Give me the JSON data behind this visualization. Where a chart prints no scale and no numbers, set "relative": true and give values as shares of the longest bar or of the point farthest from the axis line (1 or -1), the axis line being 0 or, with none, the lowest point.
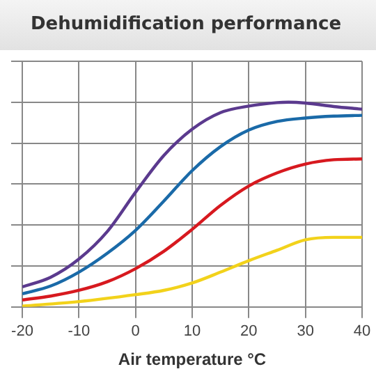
{
  "chart_data": {
    "type": "line",
    "title": "Dehumidification performance",
    "xlabel": "Air temperature °C",
    "relative": true,
    "xlim": [
      -20,
      40
    ],
    "xticks": [
      -20,
      -10,
      0,
      10,
      20,
      30,
      40
    ],
    "tick_labels": "x",
    "grid": true,
    "marker": "none",
    "line_style": "solid",
    "series": [
      {
        "color": "#5b3a8e",
        "x": [
          -20,
          -15,
          -10,
          -5,
          0,
          5,
          10,
          15,
          20,
          25,
          27,
          30,
          35,
          40
        ],
        "values": [
          0.098,
          0.145,
          0.234,
          0.368,
          0.56,
          0.74,
          0.868,
          0.949,
          0.981,
          0.998,
          1,
          0.996,
          0.979,
          0.966
        ]
      },
      {
        "color": "#1a6aa8",
        "x": [
          -20,
          -15,
          -10,
          -5,
          0,
          5,
          10,
          15,
          20,
          25,
          30,
          35,
          40
        ],
        "values": [
          0.064,
          0.102,
          0.17,
          0.262,
          0.374,
          0.517,
          0.666,
          0.783,
          0.864,
          0.906,
          0.923,
          0.932,
          0.936
        ]
      },
      {
        "color": "#d7191f",
        "x": [
          -20,
          -15,
          -10,
          -5,
          0,
          5,
          10,
          15,
          20,
          25,
          30,
          35,
          40
        ],
        "values": [
          0.034,
          0.053,
          0.081,
          0.123,
          0.187,
          0.272,
          0.379,
          0.496,
          0.591,
          0.655,
          0.698,
          0.719,
          0.723
        ]
      },
      {
        "color": "#f2d21b",
        "x": [
          -20,
          -10,
          0,
          5,
          10,
          15,
          20,
          25,
          30,
          35,
          40
        ],
        "values": [
          0.004,
          0.026,
          0.06,
          0.081,
          0.117,
          0.17,
          0.226,
          0.277,
          0.328,
          0.34,
          0.34
        ]
      }
    ]
  }
}
